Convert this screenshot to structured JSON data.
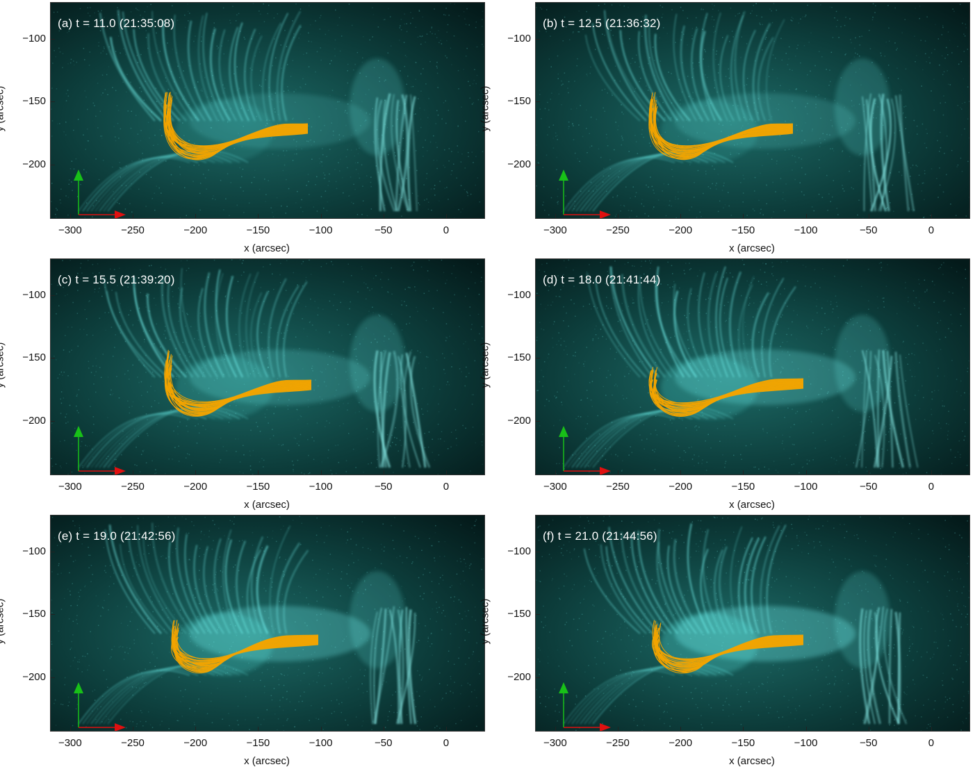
{
  "figure": {
    "panels": [
      {
        "label": "(a) t = 11.0  (21:35:08)"
      },
      {
        "label": "(b) t = 12.5  (21:36:32)"
      },
      {
        "label": "(c) t = 15.5  (21:39:20)"
      },
      {
        "label": "(d) t = 18.0  (21:41:44)"
      },
      {
        "label": "(e) t = 19.0  (21:42:56)"
      },
      {
        "label": "(f) t = 21.0  (21:44:56)"
      }
    ],
    "x_axis_label": "x (arcsec)",
    "y_axis_label": "y (arcsec)",
    "x_ticks": [
      "−300",
      "−250",
      "−200",
      "−150",
      "−100",
      "−50",
      "0"
    ],
    "y_ticks": [
      "−100",
      "−150",
      "−200"
    ],
    "colors": {
      "background_image": "#0b3b3b",
      "bright_loops": "#7fffff",
      "field_lines": "#f4a300",
      "axis_x_arrow": "#e01010",
      "axis_y_arrow": "#18c018"
    }
  }
}
